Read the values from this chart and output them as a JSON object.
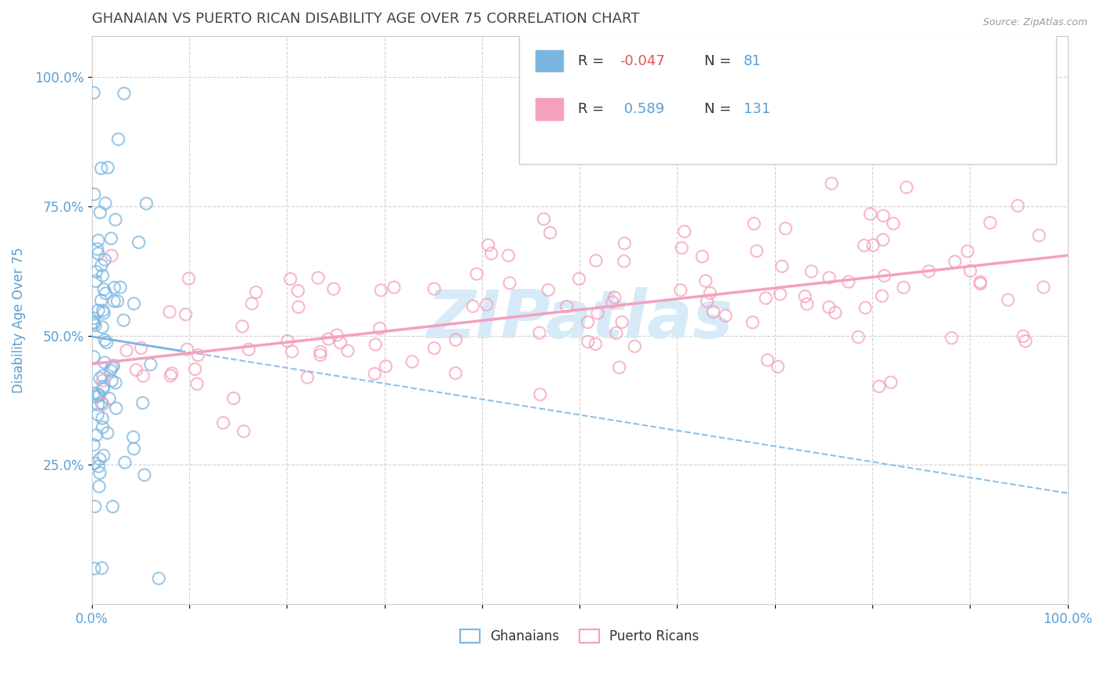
{
  "title": "GHANAIAN VS PUERTO RICAN DISABILITY AGE OVER 75 CORRELATION CHART",
  "source_text": "Source: ZipAtlas.com",
  "ylabel": "Disability Age Over 75",
  "xlim": [
    0.0,
    1.0
  ],
  "ylim": [
    -0.02,
    1.08
  ],
  "ytick_labels": [
    "25.0%",
    "50.0%",
    "75.0%",
    "100.0%"
  ],
  "ytick_values": [
    0.25,
    0.5,
    0.75,
    1.0
  ],
  "legend_blue_R": "-0.047",
  "legend_blue_N": "81",
  "legend_pink_R": "0.589",
  "legend_pink_N": "131",
  "blue_color": "#7ab6e0",
  "pink_color": "#f5a0bc",
  "title_color": "#444444",
  "axis_label_color": "#5a9fd4",
  "watermark_color": "#d6eaf8",
  "legend_label_blue": "Ghanaians",
  "legend_label_pink": "Puerto Ricans",
  "blue_R": -0.047,
  "pink_R": 0.589,
  "blue_N": 81,
  "pink_N": 131,
  "blue_line_start_y": 0.498,
  "blue_line_end_y": 0.195,
  "pink_line_start_y": 0.445,
  "pink_line_end_y": 0.655
}
